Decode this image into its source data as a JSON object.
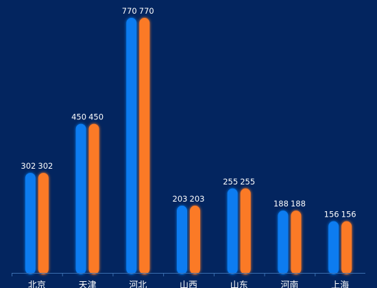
{
  "chart_data": {
    "type": "bar",
    "categories": [
      "北京",
      "天津",
      "河北",
      "山西",
      "山东",
      "河南",
      "上海"
    ],
    "series": [
      {
        "values": [
          302,
          450,
          770,
          203,
          255,
          188,
          156
        ],
        "color": "#0a7bf0"
      },
      {
        "values": [
          302,
          450,
          770,
          203,
          255,
          188,
          156
        ],
        "color": "#fb7a25"
      }
    ],
    "ylim": [
      0,
      770
    ],
    "grid": false,
    "legend": "none",
    "background": "#03255f",
    "axis_color": "#3b6fb0"
  }
}
